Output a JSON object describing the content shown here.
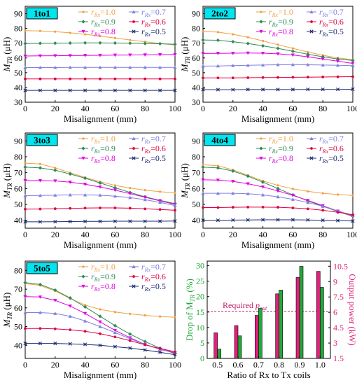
{
  "colors": {
    "r10": "#f0a040",
    "r09": "#2e8b57",
    "r08": "#e000e0",
    "r07": "#8080e0",
    "r06": "#e00040",
    "r05": "#1a2a70",
    "badge": "#00e5ee",
    "bar_green": "#22a83a",
    "bar_pink": "#e0207a",
    "threshold": "#c0206a"
  },
  "legend": [
    {
      "key": "r10",
      "label_r": "r",
      "label_sub": "Rx",
      "label_val": "=1.0",
      "marker": "dot"
    },
    {
      "key": "r07",
      "label_r": "r",
      "label_sub": "Rx",
      "label_val": "=0.7",
      "marker": "tri"
    },
    {
      "key": "r09",
      "label_r": "r",
      "label_sub": "Rx",
      "label_val": "=0.9",
      "marker": "diamond"
    },
    {
      "key": "r06",
      "label_r": "r",
      "label_sub": "Rx",
      "label_val": "=0.6",
      "marker": "circle"
    },
    {
      "key": "r08",
      "label_r": "r",
      "label_sub": "Rx",
      "label_val": "=0.8",
      "marker": "tri-down"
    },
    {
      "key": "r05",
      "label_r": "r",
      "label_sub": "Rx",
      "label_val": "=0.5",
      "marker": "x"
    }
  ],
  "chart_data": [
    {
      "type": "line",
      "badge": "1to1",
      "xlabel": "Misalignment (mm)",
      "ylabel_main": "M",
      "ylabel_sub": "TR",
      "ylabel_unit": " (μH)",
      "x": [
        0,
        10,
        20,
        30,
        40,
        50,
        60,
        70,
        80,
        90,
        100
      ],
      "xticks": [
        0,
        20,
        40,
        60,
        80,
        100
      ],
      "yticks": [
        30,
        40,
        50,
        60,
        70,
        80,
        90
      ],
      "xlim": [
        0,
        100
      ],
      "ylim": [
        30,
        95
      ],
      "series": [
        {
          "key": "r10",
          "values": [
            78.5,
            78.3,
            77.8,
            77.0,
            76.0,
            74.8,
            73.5,
            72.2,
            71.0,
            69.8,
            68.8
          ]
        },
        {
          "key": "r09",
          "values": [
            69.8,
            69.9,
            70.0,
            70.1,
            70.2,
            70.2,
            70.1,
            70.0,
            69.8,
            69.6,
            69.3
          ]
        },
        {
          "key": "r08",
          "values": [
            61.3,
            61.4,
            61.5,
            61.6,
            61.7,
            61.8,
            61.9,
            62.0,
            62.1,
            62.2,
            62.3
          ]
        },
        {
          "key": "r07",
          "values": [
            53.5,
            53.5,
            53.5,
            53.6,
            53.6,
            53.6,
            53.6,
            53.6,
            53.6,
            53.6,
            53.6
          ]
        },
        {
          "key": "r06",
          "values": [
            45.8,
            45.8,
            45.8,
            45.8,
            45.8,
            45.8,
            45.8,
            45.8,
            45.8,
            45.8,
            45.8
          ]
        },
        {
          "key": "r05",
          "values": [
            38.0,
            38.0,
            38.0,
            38.0,
            38.0,
            38.0,
            38.0,
            38.0,
            38.0,
            38.0,
            38.0
          ]
        }
      ]
    },
    {
      "type": "line",
      "badge": "2to2",
      "xlabel": "Misalignment (mm)",
      "ylabel_main": "M",
      "ylabel_sub": "TR",
      "ylabel_unit": " (μH)",
      "x": [
        0,
        10,
        20,
        30,
        40,
        50,
        60,
        70,
        80,
        90,
        100
      ],
      "xticks": [
        0,
        20,
        40,
        60,
        80,
        100
      ],
      "yticks": [
        30,
        40,
        50,
        60,
        70,
        80,
        90
      ],
      "xlim": [
        0,
        100
      ],
      "ylim": [
        30,
        95
      ],
      "series": [
        {
          "key": "r10",
          "values": [
            78.0,
            77.5,
            76.0,
            74.0,
            71.5,
            69.0,
            66.5,
            64.0,
            61.8,
            60.0,
            58.8
          ]
        },
        {
          "key": "r09",
          "values": [
            72.2,
            72.0,
            71.0,
            69.8,
            68.2,
            66.5,
            64.5,
            62.5,
            60.8,
            59.3,
            58.3
          ]
        },
        {
          "key": "r08",
          "values": [
            63.0,
            63.1,
            63.2,
            63.3,
            63.2,
            62.8,
            62.0,
            60.8,
            59.3,
            57.8,
            56.3
          ]
        },
        {
          "key": "r07",
          "values": [
            54.5,
            54.6,
            54.8,
            55.0,
            55.2,
            55.4,
            55.5,
            55.4,
            55.2,
            55.0,
            54.8
          ]
        },
        {
          "key": "r06",
          "values": [
            46.5,
            46.5,
            46.5,
            46.6,
            46.7,
            46.8,
            46.9,
            47.0,
            47.1,
            47.2,
            47.3
          ]
        },
        {
          "key": "r05",
          "values": [
            38.5,
            38.5,
            38.5,
            38.6,
            38.6,
            38.6,
            38.6,
            38.7,
            38.7,
            38.7,
            38.8
          ]
        }
      ]
    },
    {
      "type": "line",
      "badge": "3to3",
      "xlabel": "Misalignment (mm)",
      "ylabel_main": "M",
      "ylabel_sub": "TR",
      "ylabel_unit": " (μH)",
      "x": [
        0,
        10,
        20,
        30,
        40,
        50,
        60,
        70,
        80,
        90,
        100
      ],
      "xticks": [
        0,
        20,
        40,
        60,
        80,
        100
      ],
      "yticks": [
        40,
        50,
        60,
        70,
        80,
        90
      ],
      "xlim": [
        0,
        100
      ],
      "ylim": [
        35,
        95
      ],
      "series": [
        {
          "key": "r10",
          "values": [
            76.0,
            75.5,
            73.0,
            70.0,
            67.0,
            64.3,
            62.0,
            60.3,
            59.0,
            58.0,
            57.3
          ]
        },
        {
          "key": "r09",
          "values": [
            73.5,
            73.0,
            71.5,
            69.2,
            66.5,
            63.5,
            60.5,
            57.5,
            54.8,
            52.5,
            50.5
          ]
        },
        {
          "key": "r08",
          "values": [
            65.0,
            65.0,
            64.8,
            64.0,
            62.7,
            61.0,
            59.0,
            56.8,
            54.5,
            52.2,
            50.0
          ]
        },
        {
          "key": "r07",
          "values": [
            55.5,
            55.6,
            55.8,
            56.0,
            56.0,
            55.8,
            55.2,
            54.3,
            53.0,
            51.3,
            49.3
          ]
        },
        {
          "key": "r06",
          "values": [
            47.0,
            47.1,
            47.3,
            47.5,
            47.7,
            47.8,
            47.8,
            47.6,
            47.2,
            46.8,
            46.3
          ]
        },
        {
          "key": "r05",
          "values": [
            39.0,
            39.0,
            39.1,
            39.2,
            39.3,
            39.3,
            39.4,
            39.4,
            39.4,
            39.4,
            39.5
          ]
        }
      ]
    },
    {
      "type": "line",
      "badge": "4to4",
      "xlabel": "Misalignment (mm)",
      "ylabel_main": "M",
      "ylabel_sub": "TR",
      "ylabel_unit": " (μH)",
      "x": [
        0,
        10,
        20,
        30,
        40,
        50,
        60,
        70,
        80,
        90,
        100
      ],
      "xticks": [
        0,
        20,
        40,
        60,
        80,
        100
      ],
      "yticks": [
        40,
        50,
        60,
        70,
        80,
        90
      ],
      "xlim": [
        0,
        100
      ],
      "ylim": [
        35,
        95
      ],
      "series": [
        {
          "key": "r10",
          "values": [
            75.0,
            74.3,
            71.8,
            68.3,
            64.8,
            62.0,
            59.8,
            58.2,
            57.0,
            56.2,
            55.7
          ]
        },
        {
          "key": "r09",
          "values": [
            73.5,
            73.0,
            71.0,
            67.8,
            64.0,
            60.0,
            56.0,
            52.2,
            48.8,
            45.5,
            42.5
          ]
        },
        {
          "key": "r08",
          "values": [
            65.5,
            65.3,
            64.5,
            63.0,
            61.0,
            58.5,
            55.7,
            52.5,
            49.2,
            45.8,
            42.7
          ]
        },
        {
          "key": "r07",
          "values": [
            57.0,
            57.0,
            57.0,
            56.7,
            56.0,
            54.8,
            53.2,
            51.2,
            48.8,
            46.0,
            43.0
          ]
        },
        {
          "key": "r06",
          "values": [
            48.0,
            48.0,
            48.2,
            48.3,
            48.3,
            48.2,
            47.8,
            47.2,
            46.3,
            45.0,
            43.5
          ]
        },
        {
          "key": "r05",
          "values": [
            40.0,
            40.0,
            40.1,
            40.2,
            40.3,
            40.3,
            40.3,
            40.2,
            40.0,
            39.8,
            39.5
          ]
        }
      ]
    },
    {
      "type": "line",
      "badge": "5to5",
      "xlabel": "Misalignment (mm)",
      "ylabel_main": "M",
      "ylabel_sub": "TR",
      "ylabel_unit": " (μH)",
      "x": [
        0,
        10,
        20,
        30,
        40,
        50,
        60,
        70,
        80,
        90,
        100
      ],
      "xticks": [
        0,
        20,
        40,
        60,
        80,
        100
      ],
      "yticks": [
        40,
        50,
        60,
        70,
        80
      ],
      "xlim": [
        0,
        100
      ],
      "ylim": [
        33,
        85
      ],
      "series": [
        {
          "key": "r10",
          "values": [
            73.0,
            72.0,
            69.0,
            65.0,
            61.5,
            59.2,
            57.8,
            56.8,
            56.0,
            55.4,
            55.0
          ]
        },
        {
          "key": "r09",
          "values": [
            73.5,
            72.5,
            69.5,
            65.3,
            60.5,
            55.5,
            50.5,
            46.0,
            42.0,
            38.5,
            35.5
          ]
        },
        {
          "key": "r08",
          "values": [
            66.0,
            65.8,
            64.0,
            61.0,
            57.0,
            52.5,
            48.0,
            44.0,
            40.5,
            37.8,
            36.0
          ]
        },
        {
          "key": "r07",
          "values": [
            57.5,
            57.5,
            57.0,
            55.5,
            53.0,
            50.0,
            46.8,
            43.5,
            40.5,
            38.0,
            36.2
          ]
        },
        {
          "key": "r06",
          "values": [
            49.0,
            49.0,
            48.8,
            48.3,
            47.5,
            46.2,
            44.5,
            42.5,
            40.3,
            38.3,
            36.5
          ]
        },
        {
          "key": "r05",
          "values": [
            41.0,
            41.0,
            41.0,
            40.8,
            40.5,
            40.0,
            39.3,
            38.5,
            37.5,
            36.3,
            35.0
          ]
        }
      ]
    },
    {
      "type": "bar",
      "xlabel": "Ratio of Rx to Tx coils",
      "ylabel_left_main": "Drop of M",
      "ylabel_left_sub": "TR",
      "ylabel_left_unit": " (%)",
      "ylabel_right": "Output power (kW)",
      "categories": [
        "0.5",
        "0.6",
        "0.7",
        "0.8",
        "0.9",
        "1.0"
      ],
      "ylim_left": [
        0,
        31.5
      ],
      "yticks_left": [
        0,
        5,
        10,
        15,
        20,
        25,
        30
      ],
      "ylim_right": [
        1.5,
        11.0
      ],
      "yticks_right": [
        "1.5",
        "3",
        "4.5",
        "6",
        "7.5",
        "9",
        "10.5"
      ],
      "series": [
        {
          "name": "Output power (kW)",
          "axis": "right",
          "color_key": "bar_pink",
          "values": [
            4.0,
            4.7,
            5.7,
            7.8,
            9.4,
            10.0
          ]
        },
        {
          "name": "Drop of M_TR (%)",
          "axis": "left",
          "color_key": "bar_green",
          "values": [
            3.0,
            7.3,
            16.2,
            22.1,
            29.8,
            23.0
          ]
        }
      ],
      "threshold": {
        "axis": "left",
        "value": 15.2,
        "label_main": "Required ",
        "label_sub_base": "p",
        "label_sub": "out"
      }
    }
  ]
}
